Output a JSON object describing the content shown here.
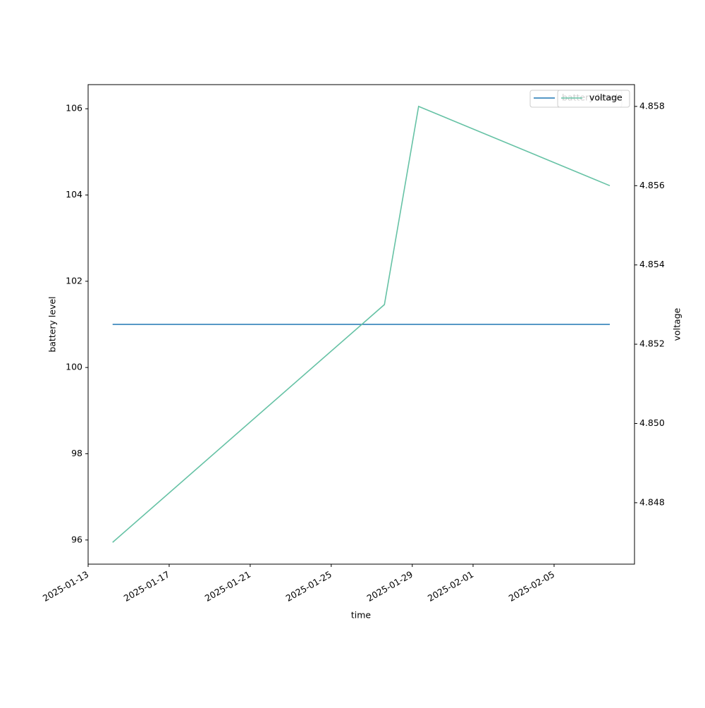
{
  "chart_data": {
    "type": "line",
    "x": [
      "2025-01-14 05:00",
      "2025-01-27 15:00",
      "2025-01-29 07:30",
      "2025-02-07 18:00"
    ],
    "series": [
      {
        "name": "battery level",
        "color": "#1f77b4",
        "values": [
          101,
          101,
          101,
          101
        ]
      },
      {
        "name": "voltage",
        "color": "#66c2a5",
        "values": [
          4.847,
          4.853,
          4.858,
          4.856
        ],
        "axis": "y2"
      }
    ],
    "xlabel": "time",
    "ylabel": "battery level",
    "y2label": "voltage",
    "xlim": [
      "2025-01-13 00:00",
      "2025-02-08 23:15"
    ],
    "xticks": [
      "2025-01-13",
      "2025-01-17",
      "2025-01-21",
      "2025-01-25",
      "2025-01-29",
      "2025-02-01",
      "2025-02-05"
    ],
    "ylim": [
      95.44,
      106.56
    ],
    "yticks": [
      96,
      98,
      100,
      102,
      104,
      106
    ],
    "y2lim": [
      4.84645,
      4.85855
    ],
    "y2ticks": [
      4.848,
      {
        "value": 4.85,
        "label": "4.850"
      },
      4.852,
      4.854,
      4.856,
      4.858
    ],
    "legend": "upper right"
  }
}
